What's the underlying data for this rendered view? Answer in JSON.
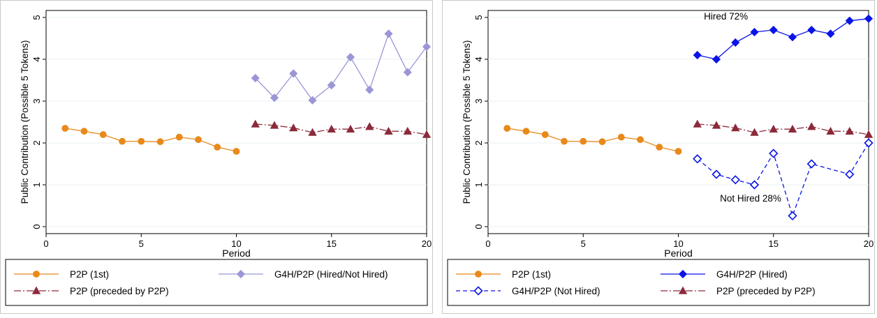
{
  "chart_data": [
    {
      "type": "line",
      "title": "",
      "xlabel": "Period",
      "ylabel": "Public Contribution (Possible 5 Tokens)",
      "xlim": [
        0,
        20
      ],
      "ylim": [
        0,
        5
      ],
      "xticks": [
        "0",
        "5",
        "10",
        "15",
        "20"
      ],
      "yticks": [
        "0",
        "1",
        "2",
        "3",
        "4",
        "5"
      ],
      "grid": "horizontal",
      "legend_position": "bottom",
      "legend_columns": 2,
      "annotations": [],
      "series": [
        {
          "name": "P2P (1st)",
          "color": "#e8891a",
          "marker": "circle-filled",
          "dash": "solid",
          "x": [
            1,
            2,
            3,
            4,
            5,
            6,
            7,
            8,
            9,
            10
          ],
          "y": [
            2.35,
            2.28,
            2.2,
            2.04,
            2.04,
            2.03,
            2.14,
            2.08,
            1.9,
            1.8
          ]
        },
        {
          "name": "G4H/P2P (Hired/Not Hired)",
          "color": "#9b96d6",
          "marker": "diamond-filled",
          "dash": "solid",
          "x": [
            11,
            12,
            13,
            14,
            15,
            16,
            17,
            18,
            19,
            20
          ],
          "y": [
            3.55,
            3.08,
            3.66,
            3.02,
            3.38,
            4.05,
            3.27,
            4.61,
            3.69,
            4.3
          ]
        },
        {
          "name": "P2P (preceded by P2P)",
          "color": "#8b2a3a",
          "marker": "triangle-filled",
          "dash": "dashdot",
          "x": [
            11,
            12,
            13,
            14,
            15,
            16,
            17,
            18,
            19,
            20
          ],
          "y": [
            2.45,
            2.42,
            2.36,
            2.25,
            2.33,
            2.33,
            2.39,
            2.28,
            2.28,
            2.2
          ]
        }
      ]
    },
    {
      "type": "line",
      "title": "",
      "xlabel": "Period",
      "ylabel": "Public Contribution (Possible 5 Tokens)",
      "xlim": [
        0,
        20
      ],
      "ylim": [
        0,
        5
      ],
      "xticks": [
        "0",
        "5",
        "10",
        "15",
        "20"
      ],
      "yticks": [
        "0",
        "1",
        "2",
        "3",
        "4",
        "5"
      ],
      "grid": "horizontal",
      "legend_position": "bottom",
      "legend_columns": 2,
      "annotations": [
        {
          "text": "Hired 72%",
          "x": 12.5,
          "y": 4.95
        },
        {
          "text": "Not Hired 28%",
          "x": 13.8,
          "y": 0.6
        }
      ],
      "series": [
        {
          "name": "P2P (1st)",
          "color": "#e8891a",
          "marker": "circle-filled",
          "dash": "solid",
          "x": [
            1,
            2,
            3,
            4,
            5,
            6,
            7,
            8,
            9,
            10
          ],
          "y": [
            2.35,
            2.28,
            2.2,
            2.04,
            2.04,
            2.03,
            2.14,
            2.08,
            1.9,
            1.8
          ]
        },
        {
          "name": "G4H/P2P (Hired)",
          "color": "#0a14e6",
          "marker": "diamond-filled",
          "dash": "solid",
          "x": [
            11,
            12,
            13,
            14,
            15,
            16,
            17,
            18,
            19,
            20
          ],
          "y": [
            4.1,
            4.0,
            4.4,
            4.65,
            4.7,
            4.53,
            4.7,
            4.61,
            4.92,
            4.97
          ]
        },
        {
          "name": "G4H/P2P (Not Hired)",
          "color": "#0a14e6",
          "marker": "diamond-hollow",
          "dash": "dashed",
          "x": [
            11,
            12,
            13,
            14,
            15,
            16,
            17,
            18,
            19,
            20
          ],
          "y": [
            1.62,
            1.25,
            1.12,
            1.0,
            1.75,
            0.26,
            1.5,
            null,
            1.25,
            2.0
          ]
        },
        {
          "name": "P2P (preceded by P2P)",
          "color": "#8b2a3a",
          "marker": "triangle-filled",
          "dash": "dashdot",
          "x": [
            11,
            12,
            13,
            14,
            15,
            16,
            17,
            18,
            19,
            20
          ],
          "y": [
            2.45,
            2.42,
            2.36,
            2.25,
            2.33,
            2.33,
            2.39,
            2.28,
            2.28,
            2.2
          ]
        }
      ]
    }
  ]
}
